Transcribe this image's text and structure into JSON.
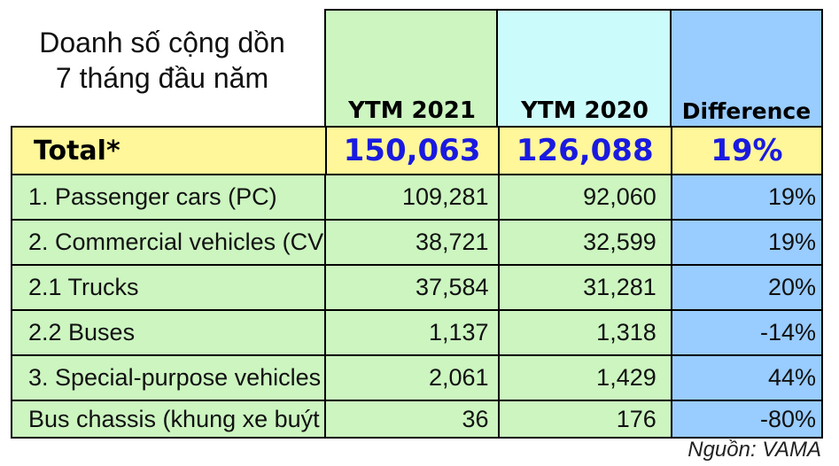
{
  "title": [
    "Doanh số cộng dồn",
    "7 tháng đầu năm"
  ],
  "headers": [
    "YTM 2021",
    "YTM 2020",
    "Difference"
  ],
  "total": {
    "label": "Total*",
    "ytm2021": "150,063",
    "ytm2020": "126,088",
    "difference": "19%"
  },
  "rows": [
    {
      "label": "1. Passenger cars (PC)",
      "ytm2021": "109,281",
      "ytm2020": "92,060",
      "difference": "19%"
    },
    {
      "label": "2. Commercial vehicles (CV",
      "ytm2021": "38,721",
      "ytm2020": "32,599",
      "difference": "19%"
    },
    {
      "label": "2.1 Trucks",
      "ytm2021": "37,584",
      "ytm2020": "31,281",
      "difference": "20%"
    },
    {
      "label": "2.2 Buses",
      "ytm2021": "1,137",
      "ytm2020": "1,318",
      "difference": "-14%"
    },
    {
      "label": "3. Special-purpose vehicles",
      "ytm2021": "2,061",
      "ytm2020": "1,429",
      "difference": "44%"
    },
    {
      "label": "Bus chassis (khung xe buýt",
      "ytm2021": "36",
      "ytm2020": "176",
      "difference": "-80%"
    }
  ],
  "source": "Nguồn: VAMA",
  "colors": {
    "green": "#ccf5c0",
    "cyan": "#ccfbfb",
    "blue": "#99ccff",
    "yellow": "#fff799",
    "total_text": "#1a1ae0"
  }
}
